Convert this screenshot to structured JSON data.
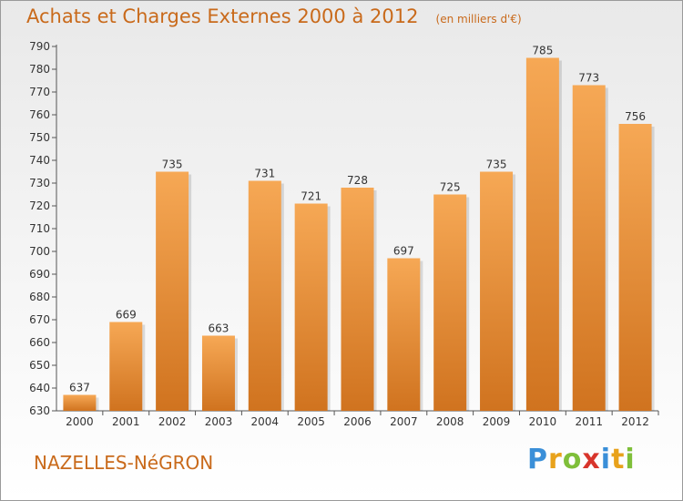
{
  "header": {
    "title": "Achats et Charges Externes 2000 à 2012",
    "unit": "(en milliers d'€)"
  },
  "location": "NAZELLES-NéGRON",
  "logo": {
    "text": "Proxiti",
    "letters": [
      {
        "char": "P",
        "color": "#3a8fd8"
      },
      {
        "char": "r",
        "color": "#e8a21b"
      },
      {
        "char": "o",
        "color": "#7fbf3a"
      },
      {
        "char": "x",
        "color": "#d8352c"
      },
      {
        "char": "i",
        "color": "#3a8fd8"
      },
      {
        "char": "t",
        "color": "#e8a21b"
      },
      {
        "char": "i",
        "color": "#7fbf3a"
      }
    ]
  },
  "colors": {
    "accent": "#c96a1b",
    "bar_top": "#f6a855",
    "bar_bottom": "#d0731f"
  },
  "chart_data": {
    "type": "bar",
    "title": "Achats et Charges Externes 2000 à 2012",
    "subtitle": "(en milliers d'€)",
    "xlabel": "",
    "ylabel": "",
    "categories": [
      "2000",
      "2001",
      "2002",
      "2003",
      "2004",
      "2005",
      "2006",
      "2007",
      "2008",
      "2009",
      "2010",
      "2011",
      "2012"
    ],
    "values": [
      637,
      669,
      735,
      663,
      731,
      721,
      728,
      697,
      725,
      735,
      785,
      773,
      756
    ],
    "ylim": [
      630,
      790
    ],
    "yticks": [
      630,
      640,
      650,
      660,
      670,
      680,
      690,
      700,
      710,
      720,
      730,
      740,
      750,
      760,
      770,
      780,
      790
    ],
    "grid": false,
    "legend": "none"
  }
}
